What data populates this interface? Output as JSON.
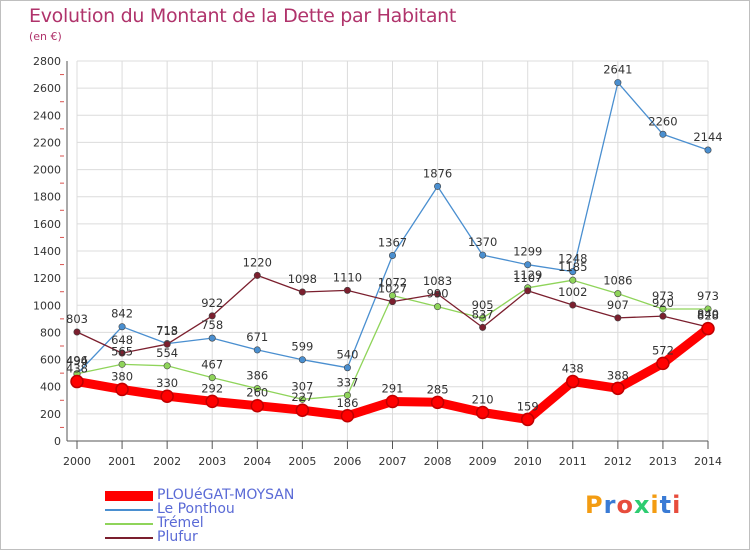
{
  "header": {
    "title": "Evolution du Montant de la Dette par Habitant",
    "subtitle": "(en €)"
  },
  "logo": {
    "text": "Proxiti",
    "colors": [
      "#f39c12",
      "#3a7bd5",
      "#e74c3c",
      "#2ecc71"
    ]
  },
  "chart_data": {
    "type": "line",
    "title": "Evolution du Montant de la Dette par Habitant",
    "subtitle": "(en €)",
    "xlabel": "",
    "ylabel": "",
    "x": [
      "2000",
      "2001",
      "2002",
      "2003",
      "2004",
      "2005",
      "2006",
      "2007",
      "2008",
      "2009",
      "2010",
      "2011",
      "2012",
      "2013",
      "2014"
    ],
    "ylim": [
      0,
      2800
    ],
    "yticks": [
      0,
      200,
      400,
      600,
      800,
      1000,
      1200,
      1400,
      1600,
      1800,
      2000,
      2200,
      2400,
      2600,
      2800
    ],
    "grid": true,
    "legend_position": "bottom-left",
    "series": [
      {
        "name": "PLOUéGAT-MOYSAN",
        "color": "#ff0000",
        "values": [
          438,
          380,
          330,
          292,
          260,
          227,
          186,
          291,
          285,
          210,
          159,
          438,
          388,
          572,
          828
        ],
        "labels": [
          "438",
          "380",
          "330",
          "292",
          "260",
          "227",
          "186",
          "291",
          "285",
          "210",
          "159",
          "438",
          "388",
          "572",
          "828"
        ]
      },
      {
        "name": "Le Ponthou",
        "color": "#4a8fd0",
        "values": [
          494,
          842,
          718,
          758,
          671,
          599,
          540,
          1367,
          1876,
          1370,
          1299,
          1248,
          2641,
          2260,
          2144
        ],
        "labels": [
          "494",
          "842",
          "718",
          "758",
          "671",
          "599",
          "540",
          "1367",
          "1876",
          "1370",
          "1299",
          "1248",
          "2641",
          "2260",
          "2144"
        ]
      },
      {
        "name": "Trémel",
        "color": "#8fd45a",
        "values": [
          496,
          565,
          554,
          467,
          386,
          307,
          337,
          1072,
          990,
          905,
          1129,
          1185,
          1086,
          973,
          973
        ],
        "labels": [
          "496",
          "565",
          "554",
          "467",
          "386",
          "307",
          "337",
          "1072",
          "990",
          "905",
          "1129",
          "1185",
          "1086",
          "973",
          "973"
        ]
      },
      {
        "name": "Plufur",
        "color": "#7b1f2e",
        "values": [
          803,
          648,
          713,
          922,
          1220,
          1098,
          1110,
          1027,
          1083,
          837,
          1107,
          1002,
          907,
          920,
          840
        ],
        "labels": [
          "803",
          "648",
          "713",
          "922",
          "1220",
          "1098",
          "1110",
          "1027",
          "1083",
          "837",
          "1107",
          "1002",
          "907",
          "920",
          "840"
        ]
      }
    ]
  }
}
